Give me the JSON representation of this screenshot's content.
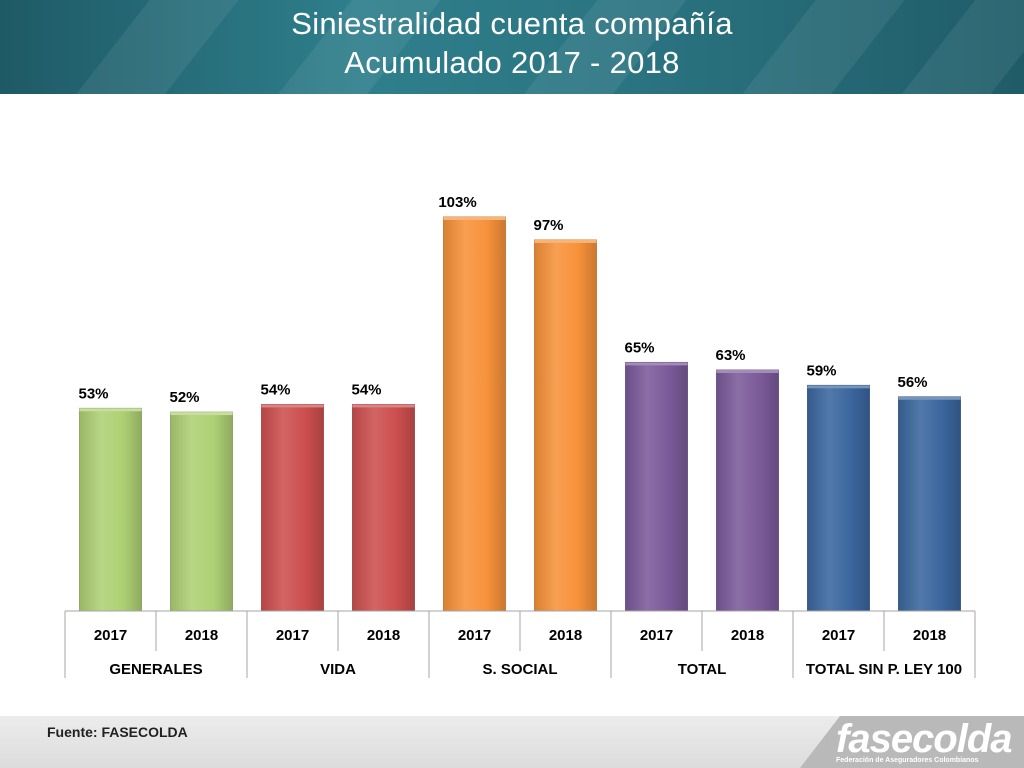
{
  "header": {
    "title_line1": "Siniestralidad cuenta compañía",
    "title_line2": "Acumulado  2017 - 2018"
  },
  "footer": {
    "source": "Fuente: FASECOLDA",
    "logo_text": "fasecolda",
    "logo_subtitle": "Federación de Aseguradores Colombianos"
  },
  "chart_data": {
    "type": "bar",
    "groups": [
      {
        "label": "GENERALES",
        "color": "#aed074",
        "bars": [
          {
            "year": "2017",
            "value": 53,
            "label": "53%"
          },
          {
            "year": "2018",
            "value": 52,
            "label": "52%"
          }
        ]
      },
      {
        "label": "VIDA",
        "color": "#cd4f4f",
        "bars": [
          {
            "year": "2017",
            "value": 54,
            "label": "54%"
          },
          {
            "year": "2018",
            "value": 54,
            "label": "54%"
          }
        ]
      },
      {
        "label": "S. SOCIAL",
        "color": "#f7923a",
        "bars": [
          {
            "year": "2017",
            "value": 103,
            "label": "103%"
          },
          {
            "year": "2018",
            "value": 97,
            "label": "97%"
          }
        ]
      },
      {
        "label": "TOTAL",
        "color": "#7b5a9a",
        "bars": [
          {
            "year": "2017",
            "value": 65,
            "label": "65%"
          },
          {
            "year": "2018",
            "value": 63,
            "label": "63%"
          }
        ]
      },
      {
        "label": "TOTAL SIN P. LEY 100",
        "color": "#3a679e",
        "bars": [
          {
            "year": "2017",
            "value": 59,
            "label": "59%"
          },
          {
            "year": "2018",
            "value": 56,
            "label": "56%"
          }
        ]
      }
    ],
    "ylim": [
      0,
      103
    ],
    "grid": false,
    "legend": "none"
  }
}
